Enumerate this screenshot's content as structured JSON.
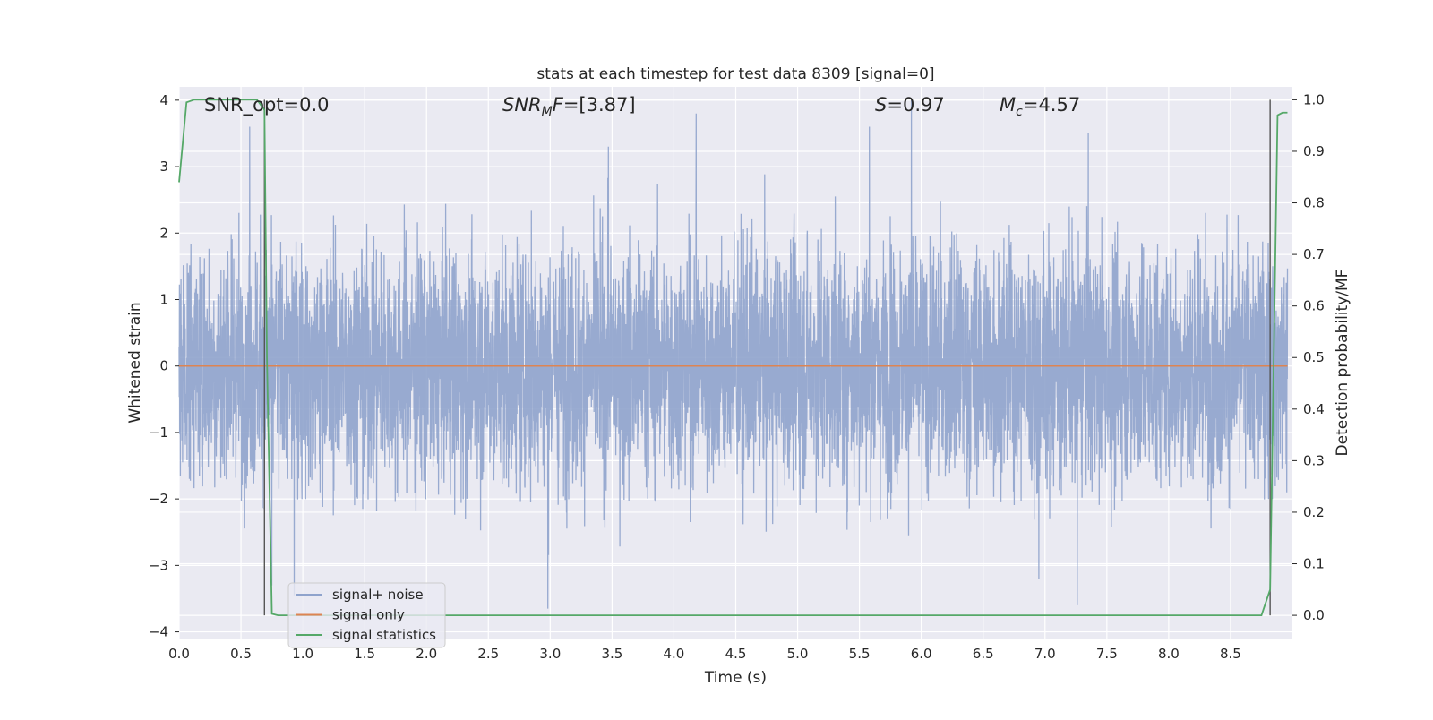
{
  "chart_data": {
    "type": "line",
    "title": "stats at each timestep for test data 8309 [signal=0]",
    "xlabel": "Time (s)",
    "ylabel": "Whitened strain",
    "y2label": "Detection probability/MF",
    "xlim": [
      0.0,
      9.0
    ],
    "ylim": [
      -4.1,
      4.2
    ],
    "y2lim": [
      -0.045,
      1.025
    ],
    "xticks": [
      "0.0",
      "0.5",
      "1.0",
      "1.5",
      "2.0",
      "2.5",
      "3.0",
      "3.5",
      "4.0",
      "4.5",
      "5.0",
      "5.5",
      "6.0",
      "6.5",
      "7.0",
      "7.5",
      "8.0",
      "8.5"
    ],
    "xtick_values": [
      0.0,
      0.5,
      1.0,
      1.5,
      2.0,
      2.5,
      3.0,
      3.5,
      4.0,
      4.5,
      5.0,
      5.5,
      6.0,
      6.5,
      7.0,
      7.5,
      8.0,
      8.5
    ],
    "yticks": [
      "4",
      "3",
      "2",
      "1",
      "0",
      "−1",
      "−2",
      "−3",
      "−4"
    ],
    "ytick_values": [
      4,
      3,
      2,
      1,
      0,
      -1,
      -2,
      -3,
      -4
    ],
    "y2ticks": [
      "1.0",
      "0.9",
      "0.8",
      "0.7",
      "0.6",
      "0.5",
      "0.4",
      "0.3",
      "0.2",
      "0.1",
      "0.0"
    ],
    "y2tick_values": [
      1.0,
      0.9,
      0.8,
      0.7,
      0.6,
      0.5,
      0.4,
      0.3,
      0.2,
      0.1,
      0.0
    ],
    "grid": true,
    "legend_position": "lower-left",
    "annotations": {
      "snr_opt": {
        "prefix": "SNR_opt=",
        "value": "0.0"
      },
      "snr_mf": {
        "base": "SNR",
        "sub": "M",
        "suffix": "F=",
        "value": "[3.87]"
      },
      "s_stat": {
        "base": "S",
        "suffix": "=",
        "value": "0.97"
      },
      "chirp_mass": {
        "base": "M",
        "sub": "c",
        "suffix": "=",
        "value": "4.57"
      }
    },
    "vlines": [
      0.69,
      8.82
    ],
    "series": [
      {
        "name": "signal+ noise",
        "axis": "left",
        "color": "#8fa3cc",
        "kind": "noise",
        "x_range": [
          0.0,
          8.96
        ],
        "envelope_std": 0.9,
        "peaks": [
          {
            "x": 0.57,
            "y": 3.6
          },
          {
            "x": 0.75,
            "y": -3.3
          },
          {
            "x": 0.93,
            "y": -3.45
          },
          {
            "x": 2.98,
            "y": -3.65
          },
          {
            "x": 3.47,
            "y": 3.3
          },
          {
            "x": 4.18,
            "y": 3.8
          },
          {
            "x": 5.58,
            "y": 3.6
          },
          {
            "x": 5.92,
            "y": 4.0
          },
          {
            "x": 6.95,
            "y": -3.2
          },
          {
            "x": 7.26,
            "y": -3.6
          },
          {
            "x": 7.35,
            "y": 3.5
          }
        ]
      },
      {
        "name": "signal only",
        "axis": "left",
        "color": "#dd8452",
        "x": [
          0.0,
          8.96
        ],
        "y": [
          0.0,
          0.0
        ]
      },
      {
        "name": "signal statistics",
        "axis": "right",
        "color": "#55a868",
        "x": [
          0.0,
          0.06,
          0.12,
          0.2,
          0.5,
          0.63,
          0.69,
          0.71,
          0.75,
          0.8,
          1.0,
          8.75,
          8.82,
          8.88,
          8.92,
          8.96
        ],
        "y": [
          0.84,
          0.995,
          1.0,
          1.0,
          1.0,
          1.0,
          0.98,
          0.5,
          0.003,
          0.0,
          0.0,
          0.0,
          0.05,
          0.97,
          0.975,
          0.975
        ]
      }
    ]
  }
}
